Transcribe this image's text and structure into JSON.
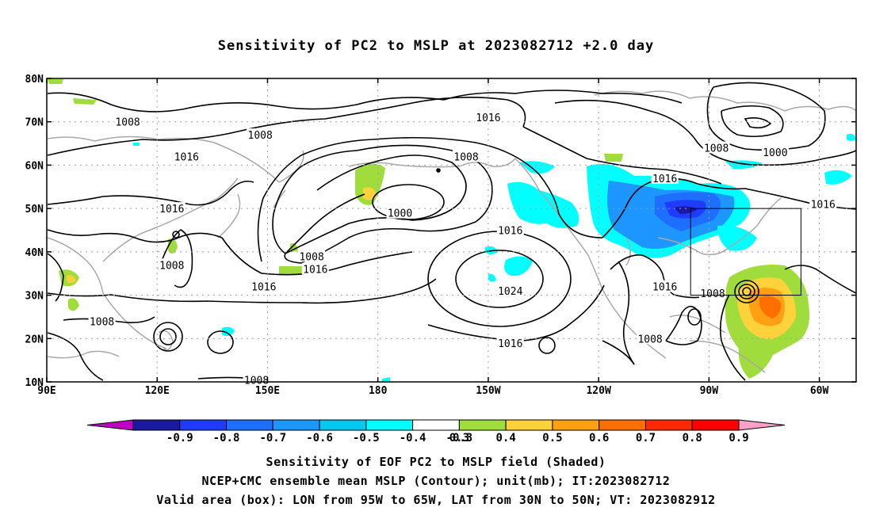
{
  "title": "Sensitivity of PC2 to MSLP at 2023082712 +2.0 day",
  "map": {
    "lat_labels": [
      "80N",
      "70N",
      "60N",
      "50N",
      "40N",
      "30N",
      "20N",
      "10N"
    ],
    "lon_labels": [
      "90E",
      "120E",
      "150E",
      "180",
      "150W",
      "120W",
      "90W",
      "60W"
    ],
    "contour_labels": [
      {
        "text": "1008",
        "lon": 112,
        "lat": 70
      },
      {
        "text": "1008",
        "lon": 148,
        "lat": 67
      },
      {
        "text": "1016",
        "lon": 128,
        "lat": 62
      },
      {
        "text": "1016",
        "lon": -150,
        "lat": 71
      },
      {
        "text": "1008",
        "lon": -156,
        "lat": 62
      },
      {
        "text": "1000",
        "lon": -174,
        "lat": 49
      },
      {
        "text": "1016",
        "lon": -144,
        "lat": 45
      },
      {
        "text": "1016",
        "lon": 124,
        "lat": 50
      },
      {
        "text": "1008",
        "lon": 124,
        "lat": 37
      },
      {
        "text": "1008",
        "lon": 162,
        "lat": 39
      },
      {
        "text": "1016",
        "lon": 163,
        "lat": 36
      },
      {
        "text": "1016",
        "lon": 149,
        "lat": 32
      },
      {
        "text": "1024",
        "lon": -144,
        "lat": 31
      },
      {
        "text": "1016",
        "lon": -144,
        "lat": 19
      },
      {
        "text": "1008",
        "lon": 105,
        "lat": 24
      },
      {
        "text": "1008",
        "lon": -106,
        "lat": 20
      },
      {
        "text": "1008",
        "lon": 147,
        "lat": 10.5
      },
      {
        "text": "1016",
        "lon": -102,
        "lat": 57
      },
      {
        "text": "1016",
        "lon": -102,
        "lat": 32
      },
      {
        "text": "1008",
        "lon": -89,
        "lat": 30.5
      },
      {
        "text": "1008",
        "lon": -88,
        "lat": 64
      },
      {
        "text": "1000",
        "lon": -72,
        "lat": 63
      },
      {
        "text": "1016",
        "lon": -59,
        "lat": 51
      }
    ],
    "valid_box": {
      "lon_from": -95,
      "lon_to": -65,
      "lat_from": 30,
      "lat_to": 50
    }
  },
  "colorbar": {
    "labels": [
      "-0.9",
      "-0.8",
      "-0.7",
      "-0.6",
      "-0.5",
      "-0.4",
      "-0.3",
      "0.3",
      "0.4",
      "0.5",
      "0.6",
      "0.7",
      "0.8",
      "0.9"
    ],
    "colors": [
      "#c000c0",
      "#1a1aa0",
      "#1e3cff",
      "#1e6eff",
      "#1e96ff",
      "#00c8f0",
      "#00ffff",
      "#ffffff",
      "#a0dc3c",
      "#ffd23c",
      "#ffa014",
      "#ff6e00",
      "#ff2800",
      "#ff0000",
      "#ffa0c8"
    ],
    "neg_end_color": "#c000c0",
    "pos_end_color": "#ffa0c8"
  },
  "captions": [
    "Sensitivity of EOF PC2 to MSLP field (Shaded)",
    "NCEP+CMC ensemble mean MSLP (Contour); unit(mb); IT:2023082712",
    "Valid area (box): LON from 95W to 65W, LAT from 30N to 50N; VT: 2023082912"
  ]
}
